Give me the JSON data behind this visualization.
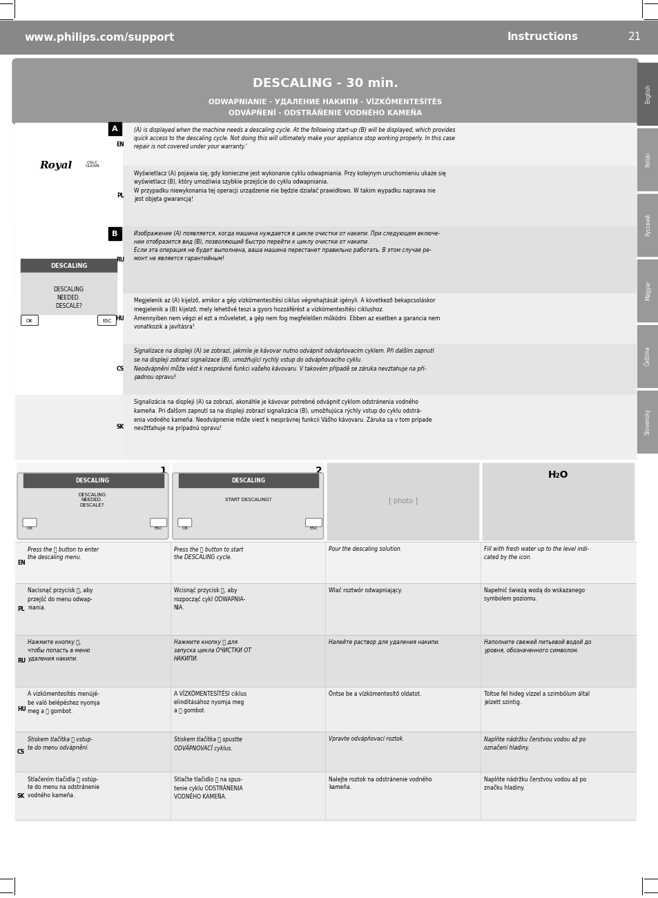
{
  "header_url": "www.philips.com/support",
  "header_instructions": "Instructions",
  "header_page": "21",
  "title_text": "DESCALING - 30 min.",
  "title_sub1": "ODWAPNIANIE - УДАЛЕНИЕ НАКИПИ - VÍZKŐMENTEŚÍTÉS",
  "title_sub2": "ODVÁPŇENÍ - ODSTRÁŇENIE VODNÉHO KAMEŇA",
  "side_labels": [
    "English",
    "Polski",
    "Русский",
    "Magyar",
    "Čeština",
    "Slovensky"
  ],
  "en_text": "(A) is displayed when the machine needs a descaling cycle. At the following start-up (B) will be displayed, which provides\nquick access to the descaling cycle. Not doing this will ultimately make your appliance stop working properly. In this case\nrepair is not covered under your warranty.'",
  "pl_text": "Wyświetlacz (A) pojawia się, gdy konieczne jest wykonanie cyklu odwapniania. Przy kolejnym uruchomieniu ukaże się\nwyświetlacz (B), który umożliwia szybkie przejście do cyklu odwapniania.\nW przypadku niewykonania tej operacji urządzenie nie będzie działać prawidłowo. W takim wypadku naprawa nie\njest objęta gwarancją!",
  "ru_text": "Изображение (A) появляется, когда машина нуждается в цикле очистки от накипи. При следующем включе-\nнии отобразится вид (B), позволяющий быстро перейти к циклу очистки от накипи.\nЕсли эта операция не будет выполнена, ваша машина перестанет правильно работать. В этом случае ре-\nмонт не является гарантийным!",
  "hu_text": "Megjelenik az (A) kijelző, amikor a gép vízkömentesítési ciklus végrehajtását igényli. A következő bekapcsoláskor\nmegjelenik a (B) kijelző, mely lehetővé teszi a gyors hozzáférést a vízkömentesítési ciklushoz.\nAmennyiben nem végzi el ezt a műveletet, a gép nem fog megfelelően működni. Ebben az esetben a garancia nem\nvonatkozik a javításra!",
  "cs_text": "Signalizace na displeji (A) se zobrazí, jakmile je kávovar nutno odvápnit odvápňovacím cyklem. Při dalším zapnutí\nse na displeji zobrazí signalizace (B), umožňující rychlý vstup do odvápňovacího cyklu.\nNeodvápnění může vést k nesprávné funkci vašeho kávovaru. V takovém případě se záruka nevztahuje na pří-\npadnou opravu!",
  "sk_text": "Signalizácia na displeji (A) sa zobrazí, akonáhle je kávovar potrebné odvápniť cyklom odstránenia vodného\nkameňa. Pri ďalšom zapnutí sa na displeji zobrazí signalizácia (B), umožňujúca rýchly vstup do cyklu odstrá-\nenia vodného kameňa. Neodvápnenie môže viesť k nesprávnej funkcii Vášho kávovaru. Záruka sa v tom prípade\nnevžtťahuje na prípadnú opravu!",
  "bottom_cols": [
    [
      "Press the Ⓜ button to enter\nthe descaling menu.",
      "Nacisnąć przycisk Ⓜ, aby\nprzejść do menu odwap-\nniania.",
      "Нажмите кнопку Ⓜ,\nчтобы попасть в меню\nудаления накипи.",
      "A vízkömentesítés menüjé-\nbe való belépéshez nyomja\nmeg a Ⓜ gombot.",
      "Stiskem tlačítka Ⓜ vstup-\nte do menu odvápnění.",
      "Stlačením tlačidla Ⓜ vstúp-\nte do menu na odstránenie\nvodného kameňa."
    ],
    [
      "Press the Ⓜ button to start\nthe DESCALING cycle.",
      "Wcisnąć przycisk Ⓜ, aby\nrozpocząć cykl ODWAPNIA-\nNIA.",
      "Нажмите кнопку Ⓜ для\nзапуска цикла ОЧИСТКИ ОТ\nНАКИПИ.",
      "A VÍZKÖMENTESÍTÉSI ciklus\nelindításához nyomja meg\na Ⓜ gombot.",
      "Stiskem tlačítka Ⓜ spustte\nODVÁPNOVACÍ cyklus.",
      "Stlačte tlačidlo Ⓜ na spus-\ntenie cyklu ODSTRÁNENIA\nVODNÉHO KAMEŇA."
    ],
    [
      "Pour the descaling solution.",
      "Wlać roztwór odwapniający.",
      "Налейте раствор для удаления накипи.",
      "Öntse be a vízkömentesítő oldatot.",
      "Vpravte odvápňovací roztok.",
      "Nalejte roztok na odstránenie vodného\nkameňa."
    ],
    [
      "Fill with fresh water up to the level indi-\ncated by the icon.",
      "Napełnić świeżą wodą do wskazanego\nsymbolem poziomu.",
      "Наполните свежей питьевой водой до\nуровня, обозначенного символом.",
      "Töltse fel hideg vízzel a szimbólum által\njelzett szintig.",
      "Naplňte nádržku čerstvou vodou až po\noznačení hladiny.",
      "Naplňte nádržku čerstvou vodou až po\nznačku hladiny."
    ]
  ]
}
